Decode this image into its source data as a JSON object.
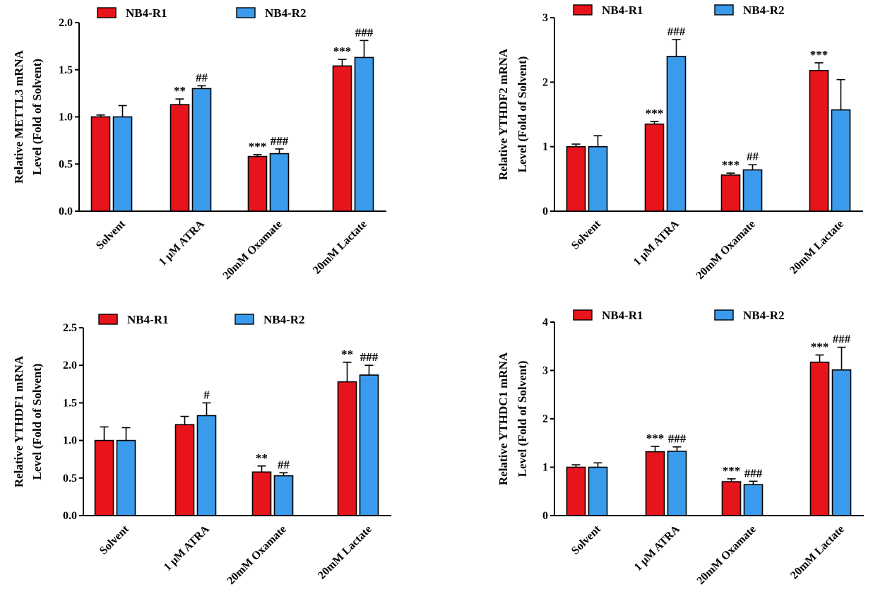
{
  "colors": {
    "NB4-R1": "#e8141b",
    "NB4-R2": "#3a9bec"
  },
  "chart_data": [
    {
      "type": "bar",
      "ylabel_line1": "Relative METTL3 mRNA",
      "ylabel_line2": "Level (Fold of  Solvent)",
      "categories": [
        "Solvent",
        "1 μM ATRA",
        "20mM Oxamate",
        "20mM Lactate"
      ],
      "legend": [
        "NB4-R1",
        "NB4-R2"
      ],
      "ylim": [
        0,
        2.0
      ],
      "yticks": [
        "0.0",
        "0.5",
        "1.0",
        "1.5",
        "2.0"
      ],
      "series": [
        {
          "name": "NB4-R1",
          "values": [
            1.0,
            1.13,
            0.58,
            1.54
          ],
          "errors": [
            0.02,
            0.06,
            0.02,
            0.07
          ],
          "sig": [
            "",
            "**",
            "***",
            "***"
          ]
        },
        {
          "name": "NB4-R2",
          "values": [
            1.0,
            1.3,
            0.61,
            1.63
          ],
          "errors": [
            0.12,
            0.03,
            0.05,
            0.18
          ],
          "sig": [
            "",
            "##",
            "###",
            "###"
          ]
        }
      ]
    },
    {
      "type": "bar",
      "ylabel_line1": "Relative YTHDF2 mRNA",
      "ylabel_line2": "Level (Fold of  Solvent)",
      "categories": [
        "Solvent",
        "1 μM ATRA",
        "20mM Oxamate",
        "20mM Lactate"
      ],
      "legend": [
        "NB4-R1",
        "NB4-R2"
      ],
      "ylim": [
        0,
        3
      ],
      "yticks": [
        "0",
        "1",
        "2",
        "3"
      ],
      "series": [
        {
          "name": "NB4-R1",
          "values": [
            1.0,
            1.35,
            0.56,
            2.18
          ],
          "errors": [
            0.04,
            0.04,
            0.03,
            0.12
          ],
          "sig": [
            "",
            "***",
            "***",
            "***"
          ]
        },
        {
          "name": "NB4-R2",
          "values": [
            1.0,
            2.4,
            0.64,
            1.57
          ],
          "errors": [
            0.17,
            0.26,
            0.08,
            0.47
          ],
          "sig": [
            "",
            "###",
            "##",
            ""
          ]
        }
      ]
    },
    {
      "type": "bar",
      "ylabel_line1": "Relative YTHDF1 mRNA",
      "ylabel_line2": "Level (Fold of  Solvent)",
      "categories": [
        "Solvent",
        "1 μM ATRA",
        "20mM Oxamate",
        "20mM Lactate"
      ],
      "legend": [
        "NB4-R1",
        "NB4-R2"
      ],
      "ylim": [
        0,
        2.5
      ],
      "yticks": [
        "0.0",
        "0.5",
        "1.0",
        "1.5",
        "2.0",
        "2.5"
      ],
      "series": [
        {
          "name": "NB4-R1",
          "values": [
            1.0,
            1.21,
            0.58,
            1.78
          ],
          "errors": [
            0.18,
            0.11,
            0.08,
            0.26
          ],
          "sig": [
            "",
            "",
            "**",
            "**"
          ]
        },
        {
          "name": "NB4-R2",
          "values": [
            1.0,
            1.33,
            0.53,
            1.87
          ],
          "errors": [
            0.17,
            0.17,
            0.04,
            0.13
          ],
          "sig": [
            "",
            "#",
            "##",
            "###"
          ]
        }
      ]
    },
    {
      "type": "bar",
      "ylabel_line1": "Relative YTHDC1 mRNA",
      "ylabel_line2": "Level (Fold of  Solvent)",
      "categories": [
        "Solvent",
        "1 μM ATRA",
        "20mM Oxamate",
        "20mM Lactate"
      ],
      "legend": [
        "NB4-R1",
        "NB4-R2"
      ],
      "ylim": [
        0,
        4
      ],
      "yticks": [
        "0",
        "1",
        "2",
        "3",
        "4"
      ],
      "series": [
        {
          "name": "NB4-R1",
          "values": [
            1.0,
            1.32,
            0.7,
            3.17
          ],
          "errors": [
            0.05,
            0.11,
            0.06,
            0.15
          ],
          "sig": [
            "",
            "***",
            "***",
            "***"
          ]
        },
        {
          "name": "NB4-R2",
          "values": [
            1.0,
            1.33,
            0.64,
            3.01
          ],
          "errors": [
            0.09,
            0.09,
            0.07,
            0.47
          ],
          "sig": [
            "",
            "###",
            "###",
            "###"
          ]
        }
      ]
    }
  ]
}
